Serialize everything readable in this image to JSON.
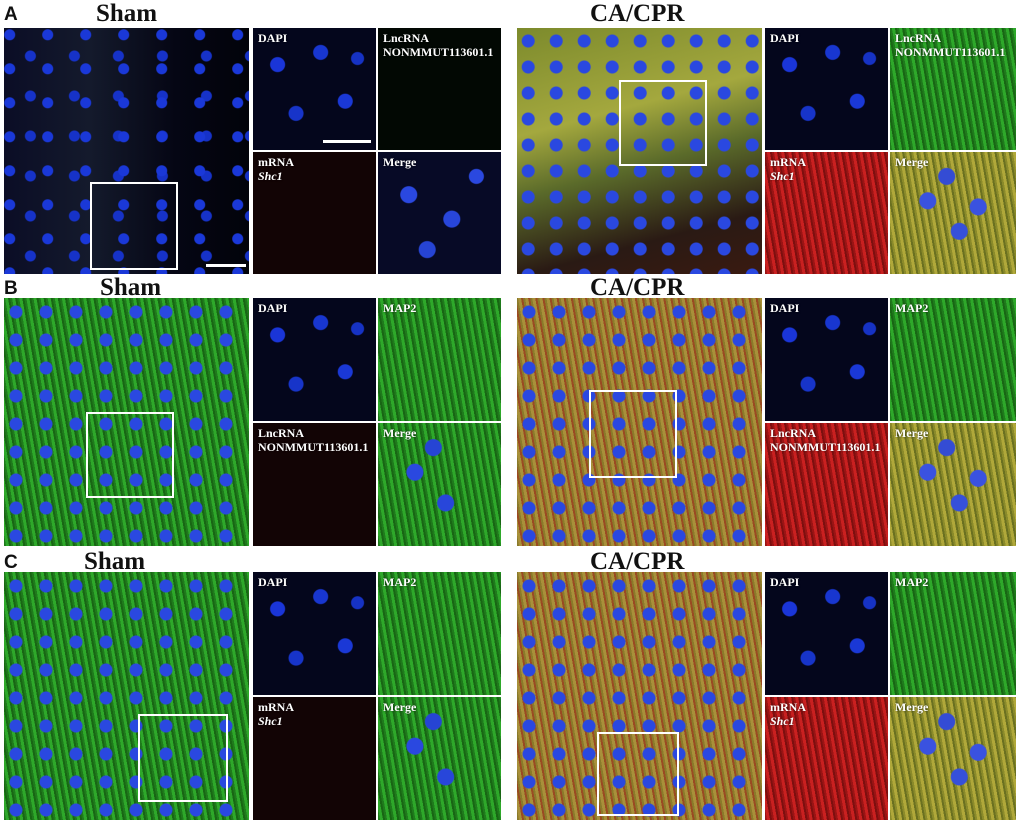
{
  "rows": {
    "a": {
      "letter": "A",
      "left": {
        "title": "Sham",
        "tiles": {
          "tl": {
            "line1": "DAPI"
          },
          "tr": {
            "line1": "LncRNA",
            "line2": "NONMMUT113601.1"
          },
          "bl": {
            "line1": "mRNA",
            "line2_italic": "Shc1"
          },
          "br": {
            "line1": "Merge"
          }
        }
      },
      "right": {
        "title": "CA/CPR",
        "tiles": {
          "tl": {
            "line1": "DAPI"
          },
          "tr": {
            "line1": "LncRNA",
            "line2": "NONMMUT113601.1"
          },
          "bl": {
            "line1": "mRNA",
            "line2_italic": "Shc1"
          },
          "br": {
            "line1": "Merge"
          }
        }
      }
    },
    "b": {
      "letter": "B",
      "left": {
        "title": "Sham",
        "tiles": {
          "tl": {
            "line1": "DAPI"
          },
          "tr": {
            "line1": "MAP2"
          },
          "bl": {
            "line1": "LncRNA",
            "line2": "NONMMUT113601.1"
          },
          "br": {
            "line1": "Merge"
          }
        }
      },
      "right": {
        "title": "CA/CPR",
        "tiles": {
          "tl": {
            "line1": "DAPI"
          },
          "tr": {
            "line1": "MAP2"
          },
          "bl": {
            "line1": "LncRNA",
            "line2": "NONMMUT113601.1"
          },
          "br": {
            "line1": "Merge"
          }
        }
      }
    },
    "c": {
      "letter": "C",
      "left": {
        "title": "Sham",
        "tiles": {
          "tl": {
            "line1": "DAPI"
          },
          "tr": {
            "line1": "MAP2"
          },
          "bl": {
            "line1": "mRNA",
            "line2_italic": "Shc1"
          },
          "br": {
            "line1": "Merge"
          }
        }
      },
      "right": {
        "title": "CA/CPR",
        "tiles": {
          "tl": {
            "line1": "DAPI"
          },
          "tr": {
            "line1": "MAP2"
          },
          "bl": {
            "line1": "mRNA",
            "line2_italic": "Shc1"
          },
          "br": {
            "line1": "Merge"
          }
        }
      }
    }
  },
  "colors": {
    "dapi": "#1a38d8",
    "green_channel": "#2ea82a",
    "red_channel": "#c92020",
    "label_text": "#ffffff",
    "zoom_box": "#ffffff"
  }
}
